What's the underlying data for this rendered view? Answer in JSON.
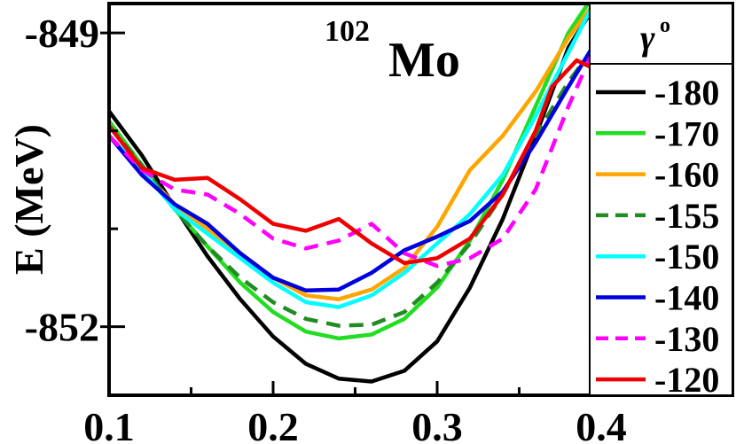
{
  "chart_data": {
    "type": "line",
    "title_mass": "102",
    "title_element": "Mo",
    "ylabel": "E (MeV)",
    "xlabel": "",
    "xlim": [
      0.1,
      0.48
    ],
    "ylim": [
      -852.7,
      -848.7
    ],
    "xticks": [
      0.1,
      0.2,
      0.3,
      0.4
    ],
    "xtick_labels": [
      "0.1",
      "0.2",
      "0.3",
      "0.4"
    ],
    "yticks": [
      -849,
      -852
    ],
    "ytick_labels": [
      "-849",
      "-852"
    ],
    "legend_title": "γ",
    "legend_title_sup": "o",
    "series": [
      {
        "name": "-180",
        "color": "#000000",
        "dash": "solid",
        "x": [
          0.1,
          0.12,
          0.14,
          0.16,
          0.18,
          0.2,
          0.22,
          0.24,
          0.26,
          0.28,
          0.3,
          0.32,
          0.34,
          0.36,
          0.38,
          0.395,
          0.41
        ],
        "y": [
          -849.8,
          -850.25,
          -850.78,
          -851.28,
          -851.72,
          -852.1,
          -852.38,
          -852.53,
          -852.56,
          -852.45,
          -852.15,
          -851.6,
          -850.9,
          -850.05,
          -849.15,
          -848.75,
          -848.4
        ]
      },
      {
        "name": "-170",
        "color": "#22dd22",
        "dash": "solid",
        "x": [
          0.1,
          0.12,
          0.14,
          0.16,
          0.18,
          0.2,
          0.22,
          0.24,
          0.26,
          0.28,
          0.3,
          0.32,
          0.34,
          0.36,
          0.38,
          0.4
        ],
        "y": [
          -849.9,
          -850.35,
          -850.8,
          -851.18,
          -851.55,
          -851.85,
          -852.05,
          -852.12,
          -852.08,
          -851.92,
          -851.6,
          -851.12,
          -850.5,
          -849.75,
          -849.0,
          -848.5
        ]
      },
      {
        "name": "-160",
        "color": "#ffa500",
        "dash": "solid",
        "x": [
          0.1,
          0.12,
          0.14,
          0.16,
          0.18,
          0.2,
          0.22,
          0.24,
          0.26,
          0.28,
          0.3,
          0.32,
          0.34,
          0.36,
          0.38,
          0.4
        ],
        "y": [
          -850.05,
          -850.4,
          -850.75,
          -851.0,
          -851.25,
          -851.5,
          -851.68,
          -851.72,
          -851.62,
          -851.4,
          -850.98,
          -850.4,
          -850.05,
          -849.6,
          -849.05,
          -848.6
        ]
      },
      {
        "name": "-155",
        "color": "#228b22",
        "dash": "dashed",
        "x": [
          0.1,
          0.12,
          0.14,
          0.16,
          0.18,
          0.2,
          0.22,
          0.24,
          0.26,
          0.28,
          0.3,
          0.32,
          0.34,
          0.36,
          0.38,
          0.4
        ],
        "y": [
          -849.95,
          -850.35,
          -850.8,
          -851.18,
          -851.5,
          -851.75,
          -851.92,
          -851.99,
          -851.98,
          -851.85,
          -851.55,
          -851.15,
          -850.65,
          -850.05,
          -849.5,
          -849.05
        ]
      },
      {
        "name": "-150",
        "color": "#00ffff",
        "dash": "solid",
        "x": [
          0.1,
          0.12,
          0.14,
          0.16,
          0.18,
          0.2,
          0.22,
          0.24,
          0.26,
          0.28,
          0.3,
          0.32,
          0.34,
          0.36,
          0.38,
          0.4
        ],
        "y": [
          -850.05,
          -850.4,
          -850.8,
          -851.05,
          -851.3,
          -851.55,
          -851.75,
          -851.8,
          -851.68,
          -851.45,
          -851.15,
          -850.85,
          -850.45,
          -849.85,
          -849.2,
          -848.55
        ]
      },
      {
        "name": "-140",
        "color": "#0000dd",
        "dash": "solid",
        "x": [
          0.1,
          0.12,
          0.14,
          0.16,
          0.18,
          0.2,
          0.22,
          0.24,
          0.26,
          0.28,
          0.3,
          0.32,
          0.34,
          0.36,
          0.38,
          0.4
        ],
        "y": [
          -850.05,
          -850.45,
          -850.75,
          -850.95,
          -851.25,
          -851.5,
          -851.63,
          -851.62,
          -851.45,
          -851.22,
          -851.08,
          -850.92,
          -850.62,
          -850.12,
          -849.55,
          -849.0
        ]
      },
      {
        "name": "-130",
        "color": "#ff00ff",
        "dash": "dashed",
        "x": [
          0.1,
          0.12,
          0.14,
          0.16,
          0.18,
          0.2,
          0.22,
          0.24,
          0.26,
          0.28,
          0.3,
          0.32,
          0.34,
          0.36,
          0.38,
          0.4
        ],
        "y": [
          -850.05,
          -850.4,
          -850.6,
          -850.65,
          -850.85,
          -851.1,
          -851.2,
          -851.12,
          -850.95,
          -851.25,
          -851.38,
          -851.3,
          -851.1,
          -850.6,
          -849.75,
          -849.0
        ]
      },
      {
        "name": "-120",
        "color": "#ee0000",
        "dash": "solid",
        "x": [
          0.1,
          0.12,
          0.14,
          0.16,
          0.18,
          0.2,
          0.22,
          0.24,
          0.26,
          0.28,
          0.3,
          0.32,
          0.34,
          0.36,
          0.37,
          0.385,
          0.4
        ],
        "y": [
          -849.95,
          -850.38,
          -850.5,
          -850.48,
          -850.7,
          -850.95,
          -851.02,
          -850.9,
          -851.15,
          -851.35,
          -851.3,
          -851.1,
          -850.65,
          -850.0,
          -849.55,
          -849.28,
          -849.4
        ]
      }
    ]
  }
}
